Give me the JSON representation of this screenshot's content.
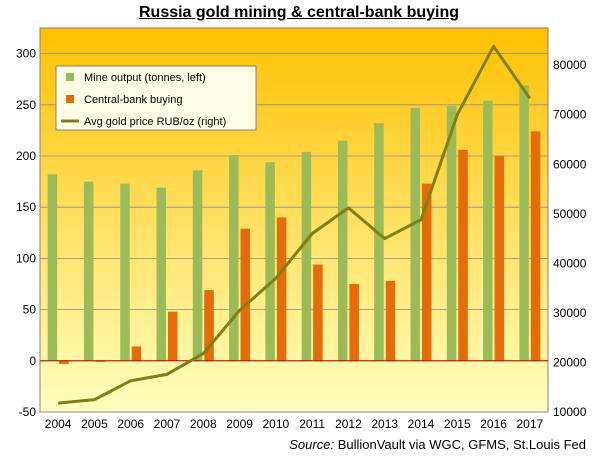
{
  "title": "Russia gold mining & central-bank buying",
  "source": {
    "label": "Source:",
    "text": "BullionVault via WGC, GFMS, St.Louis Fed"
  },
  "colors": {
    "mine_output": "#9bbb59",
    "central_bank": "#e46c0a",
    "gold_price": "#7f7f16",
    "plot_top": "#ffc000",
    "plot_bottom": "#ffffc0",
    "zero_line": "#c00000"
  },
  "chart_data": {
    "type": "bar",
    "categories": [
      "2004",
      "2005",
      "2006",
      "2007",
      "2008",
      "2009",
      "2010",
      "2011",
      "2012",
      "2013",
      "2014",
      "2015",
      "2016",
      "2017"
    ],
    "series": [
      {
        "name": "Mine output (tonnes, left)",
        "axis": "left",
        "kind": "bar",
        "values": [
          182,
          175,
          173,
          169,
          186,
          201,
          194,
          204,
          215,
          232,
          247,
          249,
          254,
          269
        ]
      },
      {
        "name": "Central-bank buying",
        "axis": "left",
        "kind": "bar",
        "values": [
          -3,
          -1,
          14,
          48,
          69,
          129,
          140,
          94,
          75,
          78,
          173,
          206,
          200,
          224
        ]
      },
      {
        "name": "Avg gold price RUB/oz (right)",
        "axis": "right",
        "kind": "line",
        "values": [
          11800,
          12500,
          16300,
          17600,
          21800,
          30500,
          37000,
          46000,
          51200,
          45000,
          48800,
          70000,
          83800,
          73300
        ]
      }
    ],
    "y_left": {
      "min": -50,
      "max": 325,
      "ticks": [
        -50,
        0,
        50,
        100,
        150,
        200,
        250,
        300
      ]
    },
    "y_right": {
      "min": 10000,
      "max": 87500,
      "ticks": [
        10000,
        20000,
        30000,
        40000,
        50000,
        60000,
        70000,
        80000
      ]
    },
    "legend_position": "top-left",
    "grid": "horizontal"
  }
}
